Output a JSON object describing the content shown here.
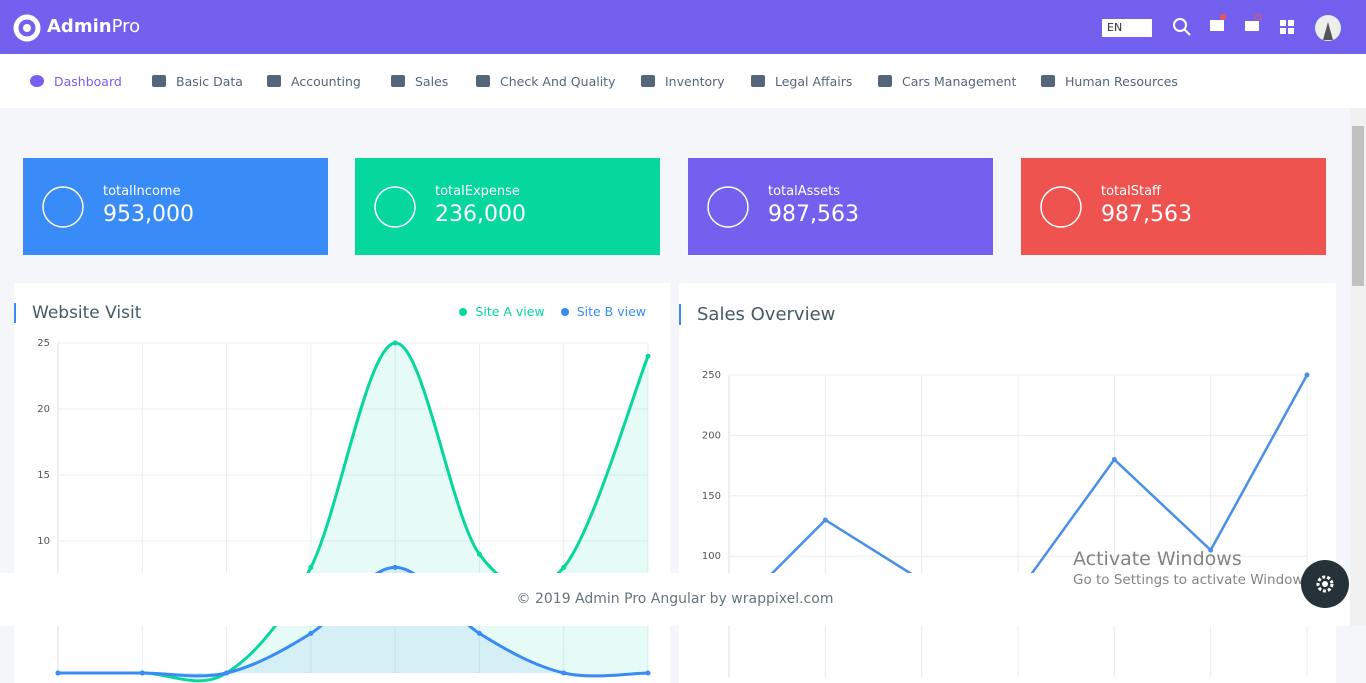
{
  "header": {
    "brand": "Admin",
    "brand_suffix": "Pro",
    "language": "EN"
  },
  "nav": [
    "Dashboard",
    "Basic Data",
    "Accounting",
    "Sales",
    "Check And Quality",
    "Inventory",
    "Legal Affairs",
    "Cars Management",
    "Human Resources"
  ],
  "stats": [
    {
      "label": "totalIncome",
      "value": "953,000",
      "color": "#398bf7"
    },
    {
      "label": "totalExpense",
      "value": "236,000",
      "color": "#06d79c"
    },
    {
      "label": "totalAssets",
      "value": "987,563",
      "color": "#7460ee"
    },
    {
      "label": "totalStaff",
      "value": "987,563",
      "color": "#ef5350"
    }
  ],
  "chart_data": [
    {
      "type": "line",
      "title": "Website Visit",
      "smooth": true,
      "area": true,
      "legend": "top-right",
      "grid": true,
      "series": [
        {
          "name": "Site A view",
          "color": "#06d79c",
          "values": [
            0,
            0,
            0,
            8,
            25,
            9,
            8,
            24
          ]
        },
        {
          "name": "Site B view",
          "color": "#398bf7",
          "values": [
            0,
            0,
            0,
            3,
            8,
            3,
            0,
            0
          ]
        }
      ],
      "ylim": [
        0,
        25
      ],
      "yticks": [
        10,
        15,
        20,
        25
      ]
    },
    {
      "type": "line",
      "title": "Sales Overview",
      "smooth": false,
      "area": false,
      "grid": true,
      "series": [
        {
          "color": "#4a8fe7",
          "values": [
            50,
            130,
            80,
            70,
            180,
            105,
            250
          ]
        }
      ],
      "ylim": [
        0,
        250
      ],
      "yticks": [
        100,
        150,
        200,
        250
      ]
    }
  ],
  "footer": "© 2019 Admin Pro Angular by wrappixel.com",
  "watermark": {
    "title": "Activate Windows",
    "text": "Go to Settings to activate Windows."
  }
}
